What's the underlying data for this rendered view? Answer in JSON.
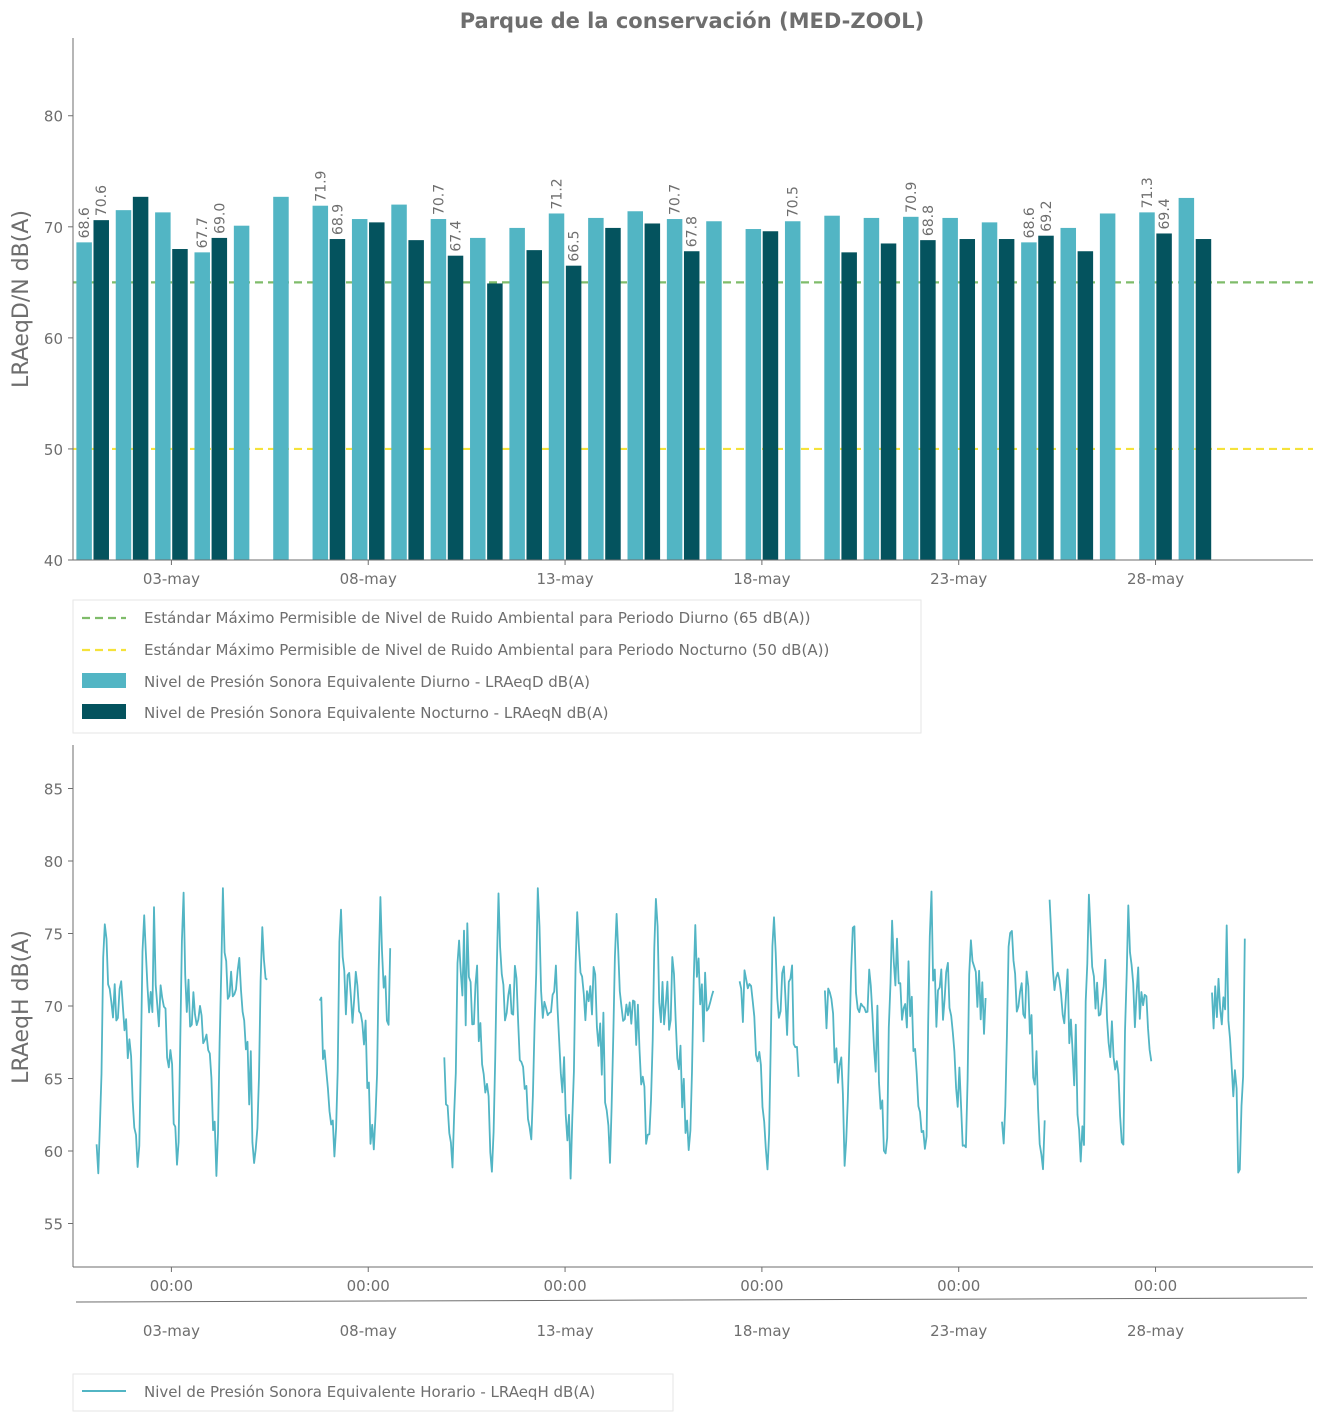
{
  "colors": {
    "day": "#52b5c4",
    "night": "#04535e",
    "limit_day": "#7fbc6a",
    "limit_night": "#f5e23a",
    "hourly": "#52b5c4",
    "axis": "#6e6e6e"
  },
  "chart_data": [
    {
      "type": "bar",
      "title": "Parque de la conservación  (MED-ZOOL)",
      "ylabel": "LRAeqD/N dB(A)",
      "xlabel": "",
      "ylim": [
        40,
        87
      ],
      "yticks": [
        40,
        50,
        60,
        70,
        80
      ],
      "xticks": [
        "03-may",
        "08-may",
        "13-may",
        "18-may",
        "23-may",
        "28-may"
      ],
      "xtick_days": [
        3,
        8,
        13,
        18,
        23,
        28
      ],
      "xlim_days": [
        0.5,
        32
      ],
      "grid": false,
      "legend_position": "bottom-left",
      "reference_lines": [
        {
          "name": "Estándar Máximo Permisible de Nivel de Ruido Ambiental para Periodo Diurno (65 dB(A))",
          "value": 65,
          "style": "dashed",
          "color": "#7fbc6a"
        },
        {
          "name": "Estándar Máximo Permisible de Nivel de Ruido Ambiental para Periodo Nocturno (50 dB(A))",
          "value": 50,
          "style": "dashed",
          "color": "#f5e23a"
        }
      ],
      "series": [
        {
          "name": "Nivel de Presión Sonora Equivalente Diurno - LRAeqD dB(A)",
          "days": [
            1,
            2,
            3,
            4,
            5,
            6,
            7,
            8,
            9,
            10,
            11,
            12,
            13,
            14,
            15,
            16,
            17,
            18,
            19,
            20,
            21,
            22,
            23,
            24,
            25,
            26,
            27,
            28,
            29
          ],
          "values": [
            68.6,
            71.5,
            71.3,
            67.7,
            70.1,
            72.7,
            71.9,
            70.7,
            72.0,
            70.7,
            69.0,
            69.9,
            71.2,
            70.8,
            71.4,
            70.7,
            70.5,
            69.8,
            70.5,
            71.0,
            70.8,
            70.9,
            70.8,
            70.4,
            68.6,
            69.9,
            71.2,
            71.3,
            72.6
          ],
          "labeled_days": [
            1,
            4,
            7,
            10,
            13,
            16,
            19,
            22,
            25,
            28
          ]
        },
        {
          "name": "Nivel de Presión Sonora Equivalente Nocturno - LRAeqN dB(A)",
          "days": [
            1,
            2,
            3,
            4,
            7,
            8,
            9,
            10,
            11,
            12,
            13,
            14,
            15,
            16,
            18,
            20,
            21,
            22,
            23,
            24,
            25,
            26,
            28,
            29
          ],
          "values": [
            70.6,
            72.7,
            68.0,
            69.0,
            68.9,
            70.4,
            68.8,
            67.4,
            64.9,
            67.9,
            66.5,
            69.9,
            70.3,
            67.8,
            69.6,
            67.7,
            68.5,
            68.8,
            68.9,
            68.9,
            69.2,
            67.8,
            69.4,
            68.9
          ],
          "labeled_days": [
            1,
            4,
            7,
            10,
            13,
            16,
            22,
            25,
            28
          ]
        }
      ]
    },
    {
      "type": "line",
      "ylabel": "LRAeqH dB(A)",
      "xlabel": "",
      "ylim": [
        52,
        88
      ],
      "yticks": [
        55,
        60,
        65,
        70,
        75,
        80,
        85
      ],
      "xticks": [
        "00:00",
        "00:00",
        "00:00",
        "00:00",
        "00:00",
        "00:00"
      ],
      "xticks_secondary": [
        "03-may",
        "08-may",
        "13-may",
        "18-may",
        "23-may",
        "28-may"
      ],
      "xtick_days": [
        3,
        8,
        13,
        18,
        23,
        28
      ],
      "xlim_days": [
        0.5,
        32
      ],
      "grid": false,
      "legend_position": "bottom-left",
      "series": [
        {
          "name": "Nivel de Presión Sonora Equivalente Horario - LRAeqH dB(A)",
          "hourly_profile": [
            64.5,
            62.0,
            60.5,
            60.0,
            62.0,
            67.0,
            73.0,
            76.5,
            74.0,
            71.5,
            70.5,
            70.0,
            70.5,
            71.0,
            70.0,
            69.5,
            70.5,
            72.0,
            71.0,
            69.0,
            68.0,
            67.0,
            66.0,
            65.0
          ],
          "start_day": 1.1,
          "end_day": 30.3,
          "gaps_days": [
            [
              5.45,
              6.75
            ],
            [
              8.6,
              9.9
            ],
            [
              16.8,
              17.4
            ],
            [
              18.95,
              19.6
            ],
            [
              23.7,
              24.1
            ],
            [
              25.2,
              25.3
            ],
            [
              27.9,
              29.4
            ]
          ]
        }
      ]
    }
  ]
}
